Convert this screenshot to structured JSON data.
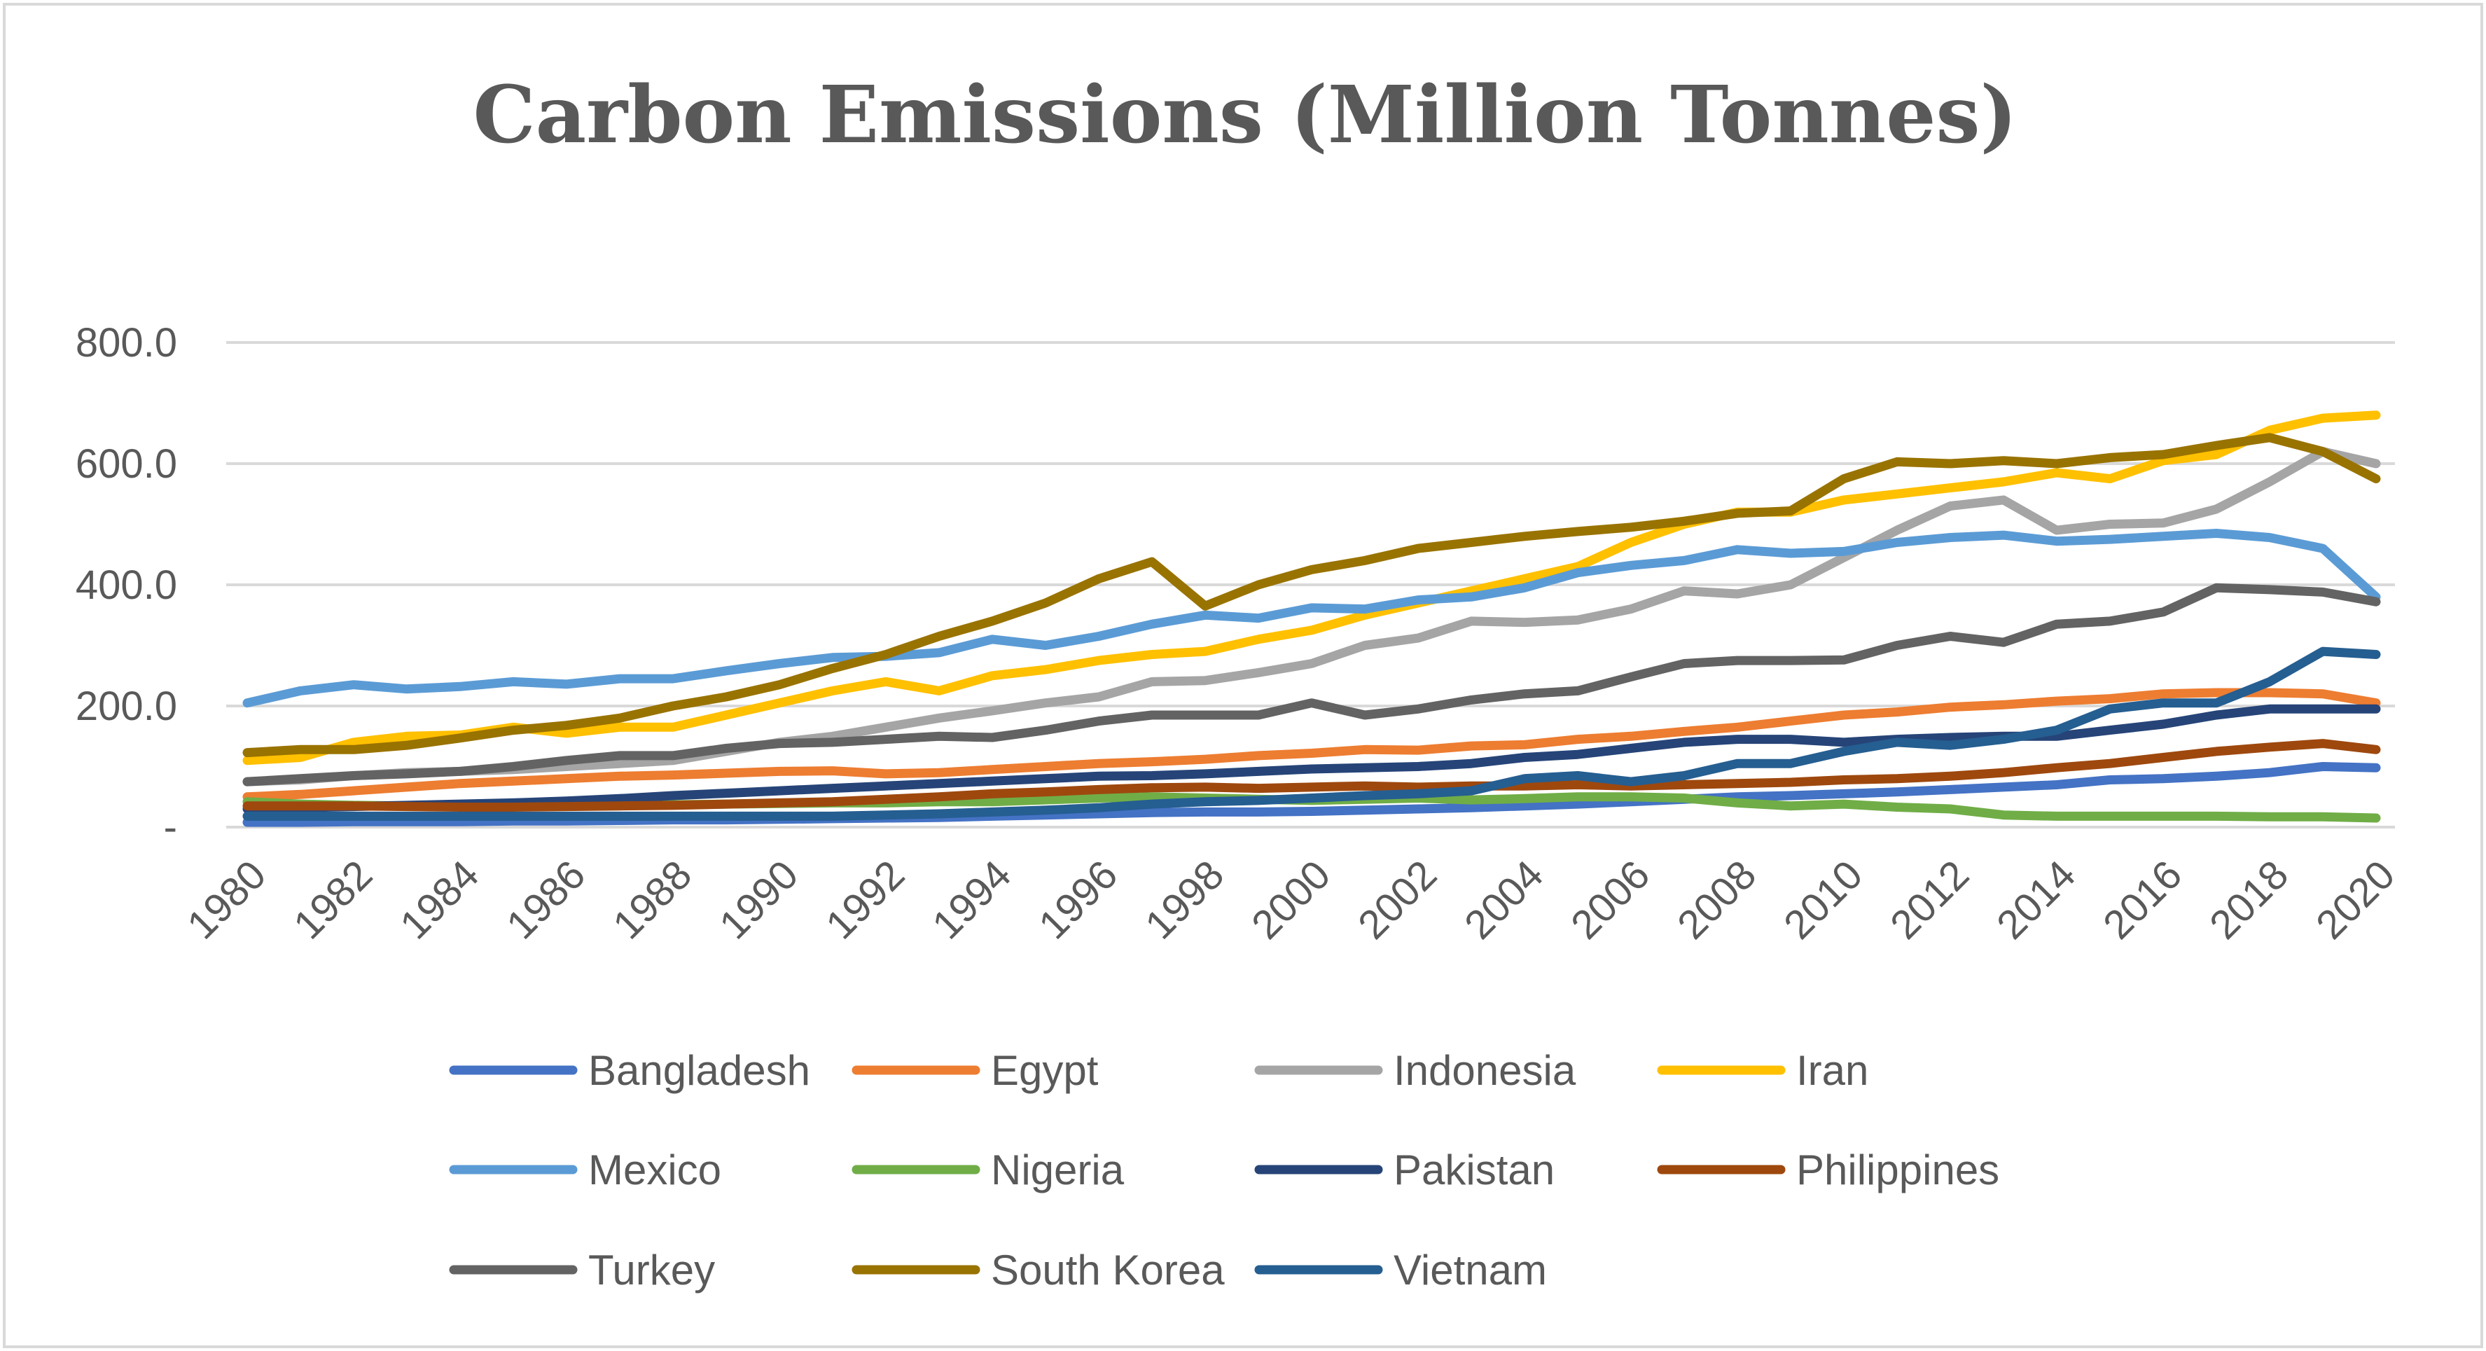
{
  "chart_data": {
    "type": "line",
    "title": "Carbon Emissions (Million Tonnes)",
    "xlabel": "",
    "ylabel": "",
    "ylim": [
      0,
      800
    ],
    "y_ticks": [
      {
        "value": 0,
        "label": "-"
      },
      {
        "value": 200,
        "label": "200.0"
      },
      {
        "value": 400,
        "label": "400.0"
      },
      {
        "value": 600,
        "label": "600.0"
      },
      {
        "value": 800,
        "label": "800.0"
      }
    ],
    "grid": true,
    "legend_position": "bottom",
    "x": [
      1980,
      1981,
      1982,
      1983,
      1984,
      1985,
      1986,
      1987,
      1988,
      1989,
      1990,
      1991,
      1992,
      1993,
      1994,
      1995,
      1996,
      1997,
      1998,
      1999,
      2000,
      2001,
      2002,
      2003,
      2004,
      2005,
      2006,
      2007,
      2008,
      2009,
      2010,
      2011,
      2012,
      2013,
      2014,
      2015,
      2016,
      2017,
      2018,
      2019,
      2020
    ],
    "x_tick_labels": [
      "1980",
      "1982",
      "1984",
      "1986",
      "1988",
      "1990",
      "1992",
      "1994",
      "1996",
      "1998",
      "2000",
      "2002",
      "2004",
      "2006",
      "2008",
      "2010",
      "2012",
      "2014",
      "2016",
      "2018",
      "2020"
    ],
    "series": [
      {
        "name": "Bangladesh",
        "color": "#4472C4",
        "values": [
          8,
          8,
          9,
          9,
          9,
          10,
          10,
          11,
          12,
          12,
          13,
          14,
          15,
          16,
          18,
          20,
          22,
          24,
          25,
          25,
          26,
          28,
          30,
          32,
          35,
          38,
          42,
          46,
          50,
          52,
          55,
          58,
          62,
          66,
          70,
          78,
          80,
          84,
          90,
          100,
          98
        ]
      },
      {
        "name": "Egypt",
        "color": "#ED7D31",
        "values": [
          50,
          54,
          60,
          66,
          72,
          76,
          80,
          84,
          86,
          89,
          92,
          93,
          88,
          90,
          95,
          100,
          105,
          108,
          112,
          118,
          122,
          128,
          127,
          134,
          136,
          145,
          150,
          158,
          165,
          175,
          185,
          190,
          198,
          202,
          208,
          212,
          220,
          222,
          222,
          220,
          205
        ]
      },
      {
        "name": "Indonesia",
        "color": "#A5A5A5",
        "values": [
          75,
          78,
          85,
          90,
          92,
          95,
          100,
          105,
          110,
          125,
          140,
          150,
          165,
          180,
          192,
          205,
          215,
          240,
          242,
          255,
          270,
          300,
          312,
          340,
          338,
          342,
          360,
          390,
          385,
          400,
          445,
          490,
          530,
          540,
          490,
          500,
          502,
          525,
          570,
          620,
          600
        ]
      },
      {
        "name": "Iran",
        "color": "#FFC000",
        "values": [
          110,
          115,
          140,
          150,
          152,
          165,
          155,
          165,
          165,
          185,
          205,
          225,
          240,
          225,
          250,
          260,
          275,
          285,
          290,
          310,
          325,
          350,
          370,
          390,
          410,
          430,
          470,
          500,
          520,
          520,
          540,
          550,
          560,
          570,
          585,
          575,
          605,
          615,
          655,
          675,
          680
        ]
      },
      {
        "name": "Mexico",
        "color": "#5B9BD5",
        "values": [
          205,
          225,
          235,
          228,
          232,
          240,
          236,
          245,
          245,
          258,
          270,
          280,
          282,
          288,
          310,
          300,
          315,
          335,
          350,
          345,
          362,
          360,
          375,
          380,
          395,
          420,
          432,
          440,
          458,
          452,
          455,
          470,
          478,
          482,
          472,
          475,
          480,
          485,
          478,
          460,
          380
        ]
      },
      {
        "name": "Nigeria",
        "color": "#70AD47",
        "values": [
          42,
          38,
          36,
          35,
          34,
          34,
          35,
          36,
          37,
          38,
          39,
          40,
          40,
          42,
          42,
          45,
          48,
          50,
          48,
          46,
          44,
          46,
          48,
          45,
          47,
          50,
          50,
          48,
          40,
          35,
          38,
          33,
          30,
          20,
          18,
          18,
          18,
          18,
          17,
          17,
          15
        ]
      },
      {
        "name": "Pakistan",
        "color": "#264478",
        "values": [
          30,
          32,
          34,
          36,
          38,
          40,
          43,
          47,
          52,
          56,
          60,
          64,
          68,
          72,
          76,
          80,
          84,
          85,
          88,
          92,
          96,
          98,
          100,
          105,
          115,
          120,
          130,
          140,
          145,
          145,
          140,
          145,
          148,
          150,
          150,
          160,
          170,
          185,
          195,
          195,
          195
        ]
      },
      {
        "name": "Philippines",
        "color": "#9E480E",
        "values": [
          35,
          35,
          35,
          34,
          33,
          33,
          34,
          35,
          36,
          38,
          40,
          42,
          46,
          50,
          55,
          58,
          62,
          65,
          66,
          64,
          66,
          68,
          66,
          68,
          68,
          70,
          68,
          70,
          72,
          74,
          78,
          80,
          84,
          90,
          98,
          105,
          115,
          125,
          132,
          138,
          128
        ]
      },
      {
        "name": "Turkey",
        "color": "#636363",
        "values": [
          75,
          80,
          85,
          88,
          92,
          100,
          110,
          118,
          118,
          130,
          138,
          140,
          145,
          150,
          148,
          160,
          175,
          185,
          185,
          185,
          205,
          185,
          195,
          210,
          220,
          225,
          248,
          270,
          275,
          275,
          276,
          300,
          315,
          305,
          335,
          340,
          355,
          395,
          392,
          388,
          372
        ]
      },
      {
        "name": "South Korea",
        "color": "#997300",
        "values": [
          123,
          128,
          128,
          135,
          147,
          160,
          168,
          180,
          200,
          215,
          235,
          262,
          285,
          315,
          340,
          370,
          410,
          438,
          365,
          400,
          425,
          440,
          460,
          470,
          480,
          488,
          495,
          505,
          518,
          522,
          575,
          603,
          600,
          605,
          600,
          610,
          615,
          630,
          643,
          620,
          575
        ]
      },
      {
        "name": "Vietnam",
        "color": "#255E91",
        "values": [
          18,
          18,
          18,
          18,
          18,
          18,
          18,
          18,
          18,
          18,
          18,
          18,
          20,
          22,
          25,
          28,
          32,
          38,
          42,
          44,
          48,
          52,
          55,
          60,
          80,
          85,
          75,
          85,
          105,
          105,
          125,
          140,
          135,
          145,
          160,
          195,
          205,
          205,
          240,
          290,
          285
        ]
      }
    ]
  }
}
